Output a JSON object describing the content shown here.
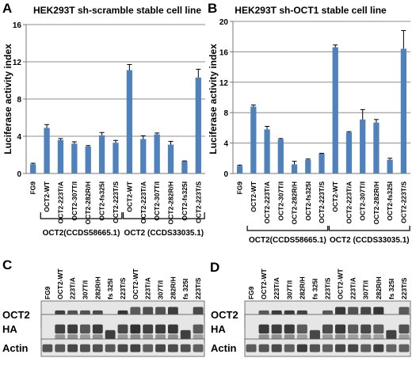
{
  "chart_data": [
    {
      "type": "bar",
      "panel": "A",
      "title": "HEK293T sh-scramble stable cell line",
      "ylabel": "Luciferase activity index",
      "ylim": [
        0,
        16
      ],
      "yticks": [
        0,
        4,
        8,
        12,
        16
      ],
      "grid": true,
      "bar_color": "#4F81BD",
      "categories": [
        "FG9",
        "OCT2-WT",
        "OCT2-223T/A",
        "OCT2-307T/I",
        "OCT2-282R/H",
        "OCT2-fs325I",
        "OCT2-223T/S",
        "OCT2-WT",
        "OCT2-223T/A",
        "OCT2-307T/I",
        "OCT2-282R/H",
        "OCT2-fs325I",
        "OCT2-223T/S"
      ],
      "values": [
        1.0,
        4.9,
        3.6,
        3.2,
        2.9,
        4.1,
        3.3,
        11.1,
        3.7,
        4.2,
        3.1,
        1.3,
        10.3
      ],
      "errors": [
        0.1,
        0.35,
        0.15,
        0.2,
        0.1,
        0.3,
        0.25,
        0.6,
        0.35,
        0.15,
        0.35,
        0.05,
        0.9
      ],
      "groups": [
        {
          "label": "OCT2(CCDS58665.1)",
          "start": 1,
          "end": 6
        },
        {
          "label": "OCT2 (CCDS33035.1)",
          "start": 7,
          "end": 12
        }
      ]
    },
    {
      "type": "bar",
      "panel": "B",
      "title": "HEK293T sh-OCT1 stable cell line",
      "ylabel": "Luciferase activity index",
      "ylim": [
        0,
        20
      ],
      "yticks": [
        0,
        4,
        8,
        12,
        16,
        20
      ],
      "grid": true,
      "bar_color": "#4F81BD",
      "categories": [
        "FG9",
        "OCT2-WT",
        "OCT2-223T/A",
        "OCT2-307T/I",
        "OCT2-282R/H",
        "OCT2-fs325I",
        "OCT2-223T/S",
        "OCT2-WT",
        "OCT2-223T/A",
        "OCT2-307T/I",
        "OCT2-282R/H",
        "OCT2-fs325I",
        "OCT2-223T/S"
      ],
      "values": [
        1.0,
        8.8,
        5.8,
        4.5,
        1.2,
        1.8,
        2.6,
        16.6,
        5.4,
        7.1,
        6.7,
        1.8,
        16.4
      ],
      "errors": [
        0.1,
        0.2,
        0.4,
        0.1,
        0.4,
        0.1,
        0.05,
        0.3,
        0.1,
        1.3,
        0.4,
        0.2,
        2.4
      ],
      "groups": [
        {
          "label": "OCT2(CCDS58665.1)",
          "start": 1,
          "end": 6
        },
        {
          "label": "OCT2 (CCDS33035.1)",
          "start": 7,
          "end": 12
        }
      ]
    }
  ],
  "blots": [
    {
      "panel": "C",
      "lanes": [
        "FG9",
        "OCT2-WT",
        "223T/A",
        "307T/I",
        "282R/H",
        "fs 325I",
        "223T/S",
        "OCT2-WT",
        "223T/A",
        "307T/I",
        "282R/H",
        "fs 325I",
        "223T/S"
      ],
      "rows": [
        "OCT2",
        "HA",
        "Actin"
      ]
    },
    {
      "panel": "D",
      "lanes": [
        "FG9",
        "OCT2-WT",
        "223T/A",
        "307T/I",
        "282R/H",
        "fs 325I",
        "223T/S",
        "OCT2-WT",
        "223T/A",
        "307T/I",
        "282R/H",
        "fs 325I",
        "223T/S"
      ],
      "rows": [
        "OCT2",
        "HA",
        "Actin"
      ]
    }
  ]
}
